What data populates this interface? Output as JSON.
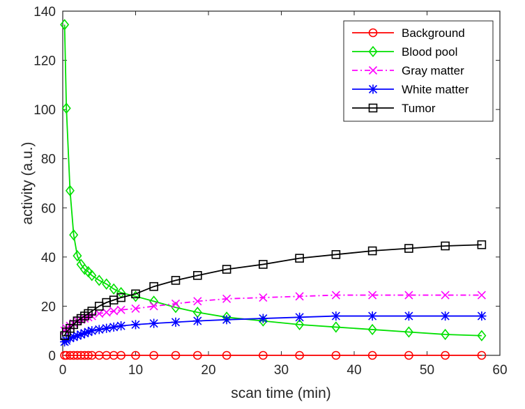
{
  "chart_data": {
    "type": "line",
    "title": "",
    "xlabel": "scan time (min)",
    "ylabel": "activity (a.u.)",
    "xlim": [
      0,
      60
    ],
    "ylim": [
      0,
      140
    ],
    "xticks": [
      0,
      10,
      20,
      30,
      40,
      50,
      60
    ],
    "yticks": [
      0,
      20,
      40,
      60,
      80,
      100,
      120,
      140
    ],
    "grid": false,
    "legend_position": "top-right",
    "x": [
      0.25,
      0.5,
      1.0,
      1.5,
      2.0,
      2.5,
      3.0,
      3.5,
      4.0,
      5.0,
      6.0,
      7.0,
      8.0,
      10.0,
      12.5,
      15.5,
      18.5,
      22.5,
      27.5,
      32.5,
      37.5,
      42.5,
      47.5,
      52.5,
      57.5
    ],
    "series": [
      {
        "name": "Background",
        "color": "#ff0000",
        "marker": "circle",
        "dash": "solid",
        "values": [
          0,
          0,
          0,
          0,
          0,
          0,
          0,
          0,
          0,
          0,
          0,
          0,
          0,
          0,
          0,
          0,
          0,
          0,
          0,
          0,
          0,
          0,
          0,
          0,
          0
        ]
      },
      {
        "name": "Blood pool",
        "color": "#00e000",
        "marker": "diamond",
        "dash": "solid",
        "values": [
          134.5,
          100.5,
          67,
          49,
          40.5,
          37,
          35,
          34,
          32.5,
          30.5,
          29,
          27,
          25.5,
          24,
          22,
          19.5,
          17.5,
          15.5,
          14,
          12.5,
          11.5,
          10.5,
          9.5,
          8.5,
          8
        ]
      },
      {
        "name": "Gray matter",
        "color": "#ff00ff",
        "marker": "x",
        "dash": "dashdot",
        "values": [
          10,
          11,
          12,
          13,
          14,
          14.5,
          15,
          15.5,
          16,
          17,
          17.5,
          18,
          18.5,
          19,
          20,
          21,
          22,
          23,
          23.5,
          24,
          24.5,
          24.5,
          24.5,
          24.5,
          24.5
        ]
      },
      {
        "name": "White matter",
        "color": "#0000ff",
        "marker": "asterisk",
        "dash": "solid",
        "values": [
          5.5,
          6,
          7,
          7.5,
          8,
          8.5,
          9,
          9.5,
          10,
          10.5,
          11,
          11.5,
          12,
          12.5,
          13,
          13.5,
          14,
          14.5,
          15,
          15.5,
          16,
          16,
          16,
          16,
          16
        ]
      },
      {
        "name": "Tumor",
        "color": "#000000",
        "marker": "square",
        "dash": "solid",
        "values": [
          8,
          9.5,
          11,
          12.5,
          14,
          15,
          16,
          17,
          18,
          20,
          21.5,
          22.5,
          23.5,
          25,
          28,
          30.5,
          32.5,
          35,
          37,
          39.5,
          41,
          42.5,
          43.5,
          44.5,
          45
        ]
      }
    ]
  }
}
